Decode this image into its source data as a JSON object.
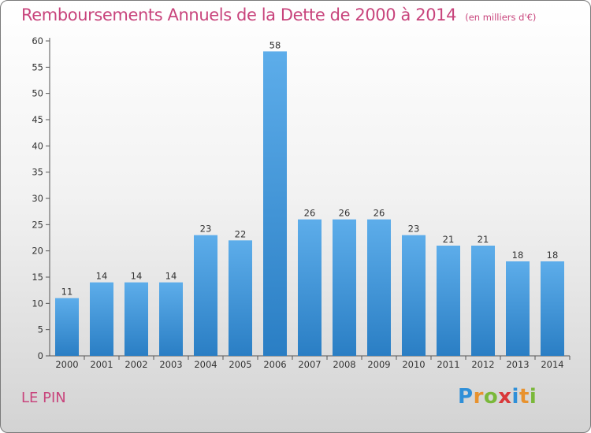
{
  "title": {
    "main": "Remboursements Annuels de la Dette de 2000 à 2014",
    "sub": "(en milliers d'€)"
  },
  "commune": "LE PIN",
  "logo": {
    "text": "Proxiti",
    "letters": [
      {
        "ch": "P",
        "color": "#2f8fd8"
      },
      {
        "ch": "r",
        "color": "#e8922e"
      },
      {
        "ch": "o",
        "color": "#7ab83a"
      },
      {
        "ch": "x",
        "color": "#d9383a"
      },
      {
        "ch": "i",
        "color": "#2f8fd8"
      },
      {
        "ch": "t",
        "color": "#e8922e"
      },
      {
        "ch": "i",
        "color": "#7ab83a"
      }
    ]
  },
  "colors": {
    "title": "#c8447c",
    "bar_top": "#5dadea",
    "bar_bottom": "#2a7ec4"
  },
  "chart_data": {
    "type": "bar",
    "categories": [
      "2000",
      "2001",
      "2002",
      "2003",
      "2004",
      "2005",
      "2006",
      "2007",
      "2008",
      "2009",
      "2010",
      "2011",
      "2012",
      "2013",
      "2014"
    ],
    "values": [
      11,
      14,
      14,
      14,
      23,
      22,
      58,
      26,
      26,
      26,
      23,
      21,
      21,
      18,
      18
    ],
    "title": "Remboursements Annuels de la Dette de 2000 à 2014",
    "subtitle": "(en milliers d'€)",
    "xlabel": "",
    "ylabel": "",
    "ylim": [
      0,
      60
    ],
    "yticks": [
      0,
      5,
      10,
      15,
      20,
      25,
      30,
      35,
      40,
      45,
      50,
      55,
      60
    ],
    "grid": false,
    "data_labels": true
  }
}
